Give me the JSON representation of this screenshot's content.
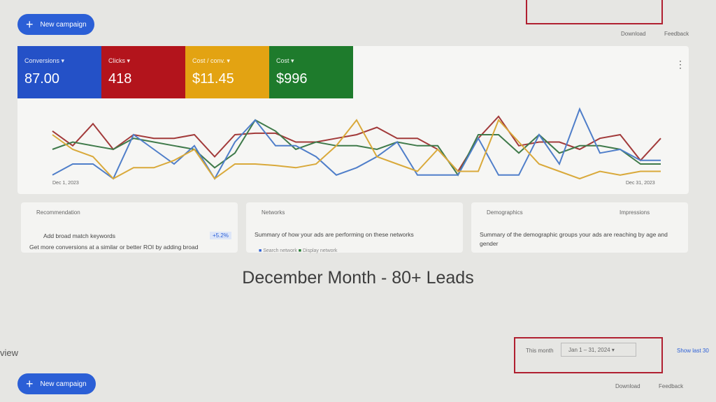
{
  "toolbar": {
    "new_campaign": "New campaign",
    "download": "Download",
    "feedback": "Feedback"
  },
  "metrics": [
    {
      "label": "Conversions",
      "value": "87.00",
      "color": "#2451c7"
    },
    {
      "label": "Clicks",
      "value": "418",
      "color": "#b3141c"
    },
    {
      "label": "Cost / conv.",
      "value": "$11.45",
      "color": "#e3a312"
    },
    {
      "label": "Cost",
      "value": "$996",
      "color": "#1e7b2c"
    }
  ],
  "chart": {
    "start_label": "Dec 1, 2023",
    "end_label": "Dec 31, 2023",
    "ylim": [
      0,
      100
    ],
    "series": [
      {
        "color": "#a23a3a",
        "values": [
          65,
          45,
          75,
          40,
          60,
          55,
          55,
          60,
          30,
          60,
          62,
          62,
          50,
          50,
          55,
          60,
          70,
          55,
          55,
          40,
          10,
          55,
          85,
          45,
          50,
          50,
          40,
          55,
          60,
          25,
          55
        ]
      },
      {
        "color": "#3f7a4a",
        "values": [
          40,
          50,
          45,
          40,
          55,
          50,
          45,
          40,
          15,
          35,
          80,
          65,
          40,
          50,
          45,
          45,
          40,
          50,
          45,
          45,
          5,
          60,
          60,
          35,
          60,
          35,
          45,
          45,
          40,
          20,
          20
        ]
      },
      {
        "color": "#4f7ec9",
        "values": [
          5,
          20,
          20,
          0,
          60,
          40,
          20,
          45,
          0,
          50,
          80,
          45,
          45,
          30,
          5,
          15,
          30,
          50,
          5,
          5,
          5,
          55,
          5,
          5,
          60,
          20,
          95,
          35,
          40,
          25,
          25
        ]
      },
      {
        "color": "#d9a93a",
        "values": [
          60,
          40,
          30,
          0,
          15,
          15,
          25,
          40,
          0,
          20,
          20,
          18,
          15,
          20,
          45,
          80,
          30,
          20,
          10,
          40,
          10,
          10,
          80,
          50,
          20,
          10,
          0,
          10,
          5,
          10,
          10
        ]
      }
    ]
  },
  "cards": [
    {
      "title": "Recommendation",
      "item": "Add broad match keywords",
      "badge": "+5.2%",
      "text": "Get more conversions at a similar or better ROI by adding broad"
    },
    {
      "title": "Networks",
      "text": "Summary of how your ads are performing on these networks",
      "legend": [
        "Search network",
        "Display network"
      ]
    },
    {
      "title": "Demographics",
      "menu": "Impressions",
      "text": "Summary of the demographic groups your ads are reaching by age and gender"
    }
  ],
  "caption": "December Month - 80+ Leads",
  "bottom": {
    "view": "view",
    "range_label": "This month",
    "range": "Jan 1 – 31, 2024",
    "show_last": "Show last 30",
    "new_campaign": "New campaign",
    "download": "Download",
    "feedback": "Feedback"
  }
}
